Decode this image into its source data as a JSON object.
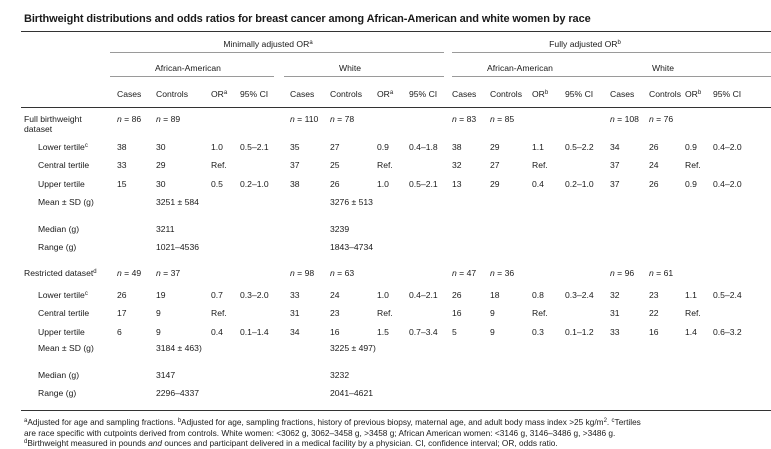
{
  "title": "Birthweight distributions and odds ratios for breast cancer among African-American and white women by race",
  "groups": [
    {
      "label": "Minimally adjusted OR",
      "sup": "a"
    },
    {
      "label": "Fully adjusted OR",
      "sup": "b"
    }
  ],
  "races": [
    "African-American",
    "White",
    "African-American",
    "White"
  ],
  "col_headers": [
    {
      "label": "Cases"
    },
    {
      "label": "Controls"
    },
    {
      "label": "OR",
      "sup": "a"
    },
    {
      "label": "95% CI"
    },
    {
      "label": "Cases"
    },
    {
      "label": "Controls"
    },
    {
      "label": "OR",
      "sup": "a"
    },
    {
      "label": "95% CI"
    },
    {
      "label": "Cases"
    },
    {
      "label": "Controls"
    },
    {
      "label": "OR",
      "sup": "b"
    },
    {
      "label": "95% CI"
    },
    {
      "label": "Cases"
    },
    {
      "label": "Controls"
    },
    {
      "label": "OR",
      "sup": "b"
    },
    {
      "label": "95% CI"
    }
  ],
  "rows": [
    {
      "label": "Full birthweight dataset",
      "indent": false,
      "cells": [
        "n = 86",
        "n = 89",
        "",
        "",
        "n = 110",
        "n = 78",
        "",
        "",
        "n = 83",
        "n = 85",
        "",
        "",
        "n = 108",
        "n = 76",
        "",
        ""
      ]
    },
    {
      "label": "Lower tertile",
      "sup": "c",
      "indent": true,
      "cells": [
        "38",
        "30",
        "1.0",
        "0.5–2.1",
        "35",
        "27",
        "0.9",
        "0.4–1.8",
        "38",
        "29",
        "1.1",
        "0.5–2.2",
        "34",
        "26",
        "0.9",
        "0.4–2.0"
      ]
    },
    {
      "label": "Central tertile",
      "indent": true,
      "cells": [
        "33",
        "29",
        "Ref.",
        "",
        "37",
        "25",
        "Ref.",
        "",
        "32",
        "27",
        "Ref.",
        "",
        "37",
        "24",
        "Ref.",
        ""
      ]
    },
    {
      "label": "Upper tertile",
      "indent": true,
      "cells": [
        "15",
        "30",
        "0.5",
        "0.2–1.0",
        "38",
        "26",
        "1.0",
        "0.5–2.1",
        "13",
        "29",
        "0.4",
        "0.2–1.0",
        "37",
        "26",
        "0.9",
        "0.4–2.0"
      ]
    },
    {
      "label": "Mean ± SD (g)",
      "indent": true,
      "cells": [
        "",
        "3251 ± 584",
        "",
        "",
        "",
        "3276 ± 513",
        "",
        "",
        "",
        "",
        "",
        "",
        "",
        "",
        "",
        ""
      ]
    },
    {
      "label": "Median (g)",
      "indent": true,
      "cells": [
        "",
        "3211",
        "",
        "",
        "",
        "3239",
        "",
        "",
        "",
        "",
        "",
        "",
        "",
        "",
        "",
        ""
      ]
    },
    {
      "label": "Range (g)",
      "indent": true,
      "cells": [
        "",
        "1021–4536",
        "",
        "",
        "",
        "1843–4734",
        "",
        "",
        "",
        "",
        "",
        "",
        "",
        "",
        "",
        ""
      ]
    },
    {
      "label": "Restricted dataset",
      "sup": "d",
      "indent": false,
      "cells": [
        "n = 49",
        "n = 37",
        "",
        "",
        "n = 98",
        "n = 63",
        "",
        "",
        "n = 47",
        "n = 36",
        "",
        "",
        "n = 96",
        "n = 61",
        "",
        ""
      ]
    },
    {
      "label": "Lower tertile",
      "sup": "c",
      "indent": true,
      "cells": [
        "26",
        "19",
        "0.7",
        "0.3–2.0",
        "33",
        "24",
        "1.0",
        "0.4–2.1",
        "26",
        "18",
        "0.8",
        "0.3–2.4",
        "32",
        "23",
        "1.1",
        "0.5–2.4"
      ]
    },
    {
      "label": "Central tertile",
      "indent": true,
      "cells": [
        "17",
        "9",
        "Ref.",
        "",
        "31",
        "23",
        "Ref.",
        "",
        "16",
        "9",
        "Ref.",
        "",
        "31",
        "22",
        "Ref.",
        ""
      ]
    },
    {
      "label": "Upper tertile",
      "indent": true,
      "cells": [
        "6",
        "9",
        "0.4",
        "0.1–1.4",
        "34",
        "16",
        "1.5",
        "0.7–3.4",
        "5",
        "9",
        "0.3",
        "0.1–1.2",
        "33",
        "16",
        "1.4",
        "0.6–3.2"
      ]
    },
    {
      "label": "Mean ± SD (g)",
      "indent": true,
      "cells": [
        "",
        "3184 ± 463)",
        "",
        "",
        "",
        "3225 ± 497)",
        "",
        "",
        "",
        "",
        "",
        "",
        "",
        "",
        "",
        ""
      ]
    },
    {
      "label": "Median (g)",
      "indent": true,
      "cells": [
        "",
        "3147",
        "",
        "",
        "",
        "3232",
        "",
        "",
        "",
        "",
        "",
        "",
        "",
        "",
        "",
        ""
      ]
    },
    {
      "label": "Range (g)",
      "indent": true,
      "cells": [
        "",
        "2296–4337",
        "",
        "",
        "",
        "2041–4621",
        "",
        "",
        "",
        "",
        "",
        "",
        "",
        "",
        "",
        ""
      ]
    }
  ],
  "footnotes": [
    [
      {
        "sup": "a"
      },
      {
        "t": "Adjusted for age and sampling fractions. "
      },
      {
        "sup": "b"
      },
      {
        "t": "Adjusted for age, sampling fractions, history of previous biopsy, maternal age, and adult body mass index >25 kg/m"
      },
      {
        "sup": "2"
      },
      {
        "t": ". "
      },
      {
        "sup": "c"
      },
      {
        "t": "Tertiles"
      }
    ],
    [
      {
        "t": "are race specific with cutpoints derived from controls. White women: <3062 g, 3062–3458 g, >3458 g; African American women: <3146 g, 3146–3486 g, >3486 g."
      }
    ],
    [
      {
        "sup": "d"
      },
      {
        "t": "Birthweight measured in pounds "
      },
      {
        "i": "and"
      },
      {
        "t": " ounces and participant delivered in a medical facility by a physician. CI, confidence interval; OR, odds ratio."
      }
    ]
  ]
}
